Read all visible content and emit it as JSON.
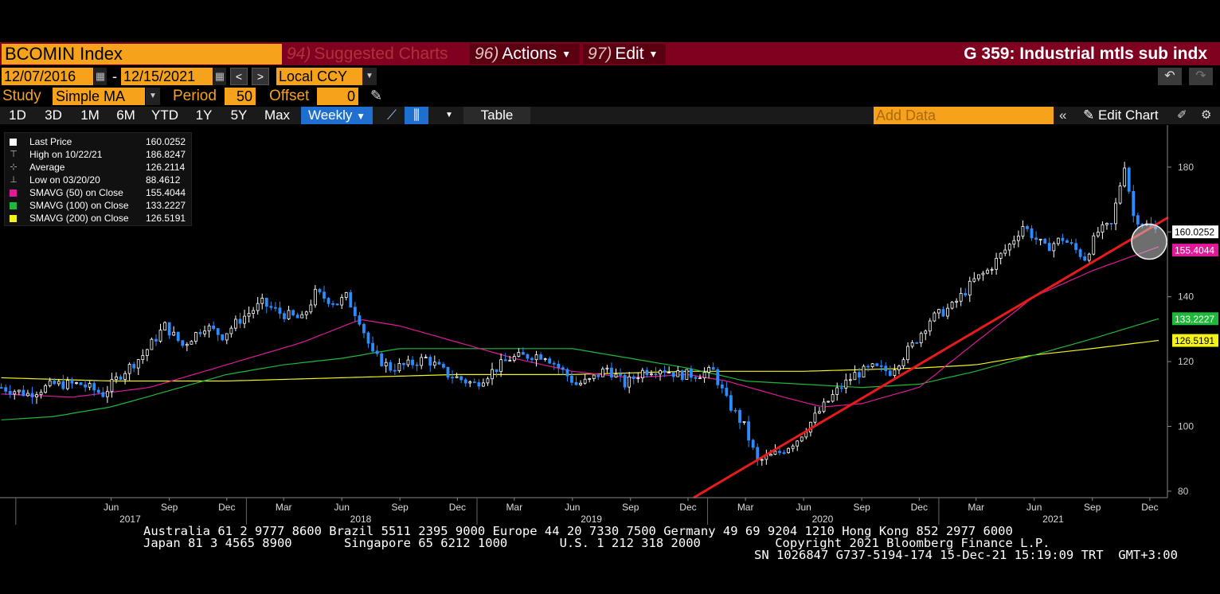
{
  "header": {
    "ticker": "BCOMIN Index",
    "suggested": {
      "num": "94)",
      "label": "Suggested Charts"
    },
    "actions": {
      "num": "96)",
      "label": "Actions"
    },
    "edit": {
      "num": "97)",
      "label": "Edit"
    },
    "chart_title": "G 359: Industrial mtls sub indx"
  },
  "controls": {
    "start_date": "12/07/2016",
    "end_date": "12/15/2021",
    "date_sep": "-",
    "prev": "<",
    "next": ">",
    "currency": "Local CCY",
    "study_label": "Study",
    "study_value": "Simple MA",
    "period_label": "Period",
    "period_value": "50",
    "offset_label": "Offset",
    "offset_value": "0"
  },
  "tabs": {
    "items": [
      "1D",
      "3D",
      "1M",
      "6M",
      "YTD",
      "1Y",
      "5Y",
      "Max"
    ],
    "active": "Weekly",
    "table": "Table",
    "add_data_placeholder": "Add Data",
    "edit_chart": "Edit Chart"
  },
  "legend": [
    {
      "name": "Last Price",
      "value": "160.0252",
      "color": "#ffffff"
    },
    {
      "name": "High on 10/22/21",
      "value": "186.8247",
      "icon": "high-marker-icon"
    },
    {
      "name": "Average",
      "value": "126.2114",
      "icon": "average-marker-icon"
    },
    {
      "name": "Low on 03/20/20",
      "value": "88.4612",
      "icon": "low-marker-icon"
    },
    {
      "name": "SMAVG (50)  on Close",
      "value": "155.4044",
      "color": "#e0189a"
    },
    {
      "name": "SMAVG (100)  on Close",
      "value": "133.2227",
      "color": "#1fb83a"
    },
    {
      "name": "SMAVG (200)  on Close",
      "value": "126.5191",
      "color": "#f3f31a"
    }
  ],
  "chart_data": {
    "type": "candlestick",
    "period": "weekly",
    "x_range": [
      "2016-12-07",
      "2021-12-15"
    ],
    "ylim": [
      78,
      193
    ],
    "y_ticks": [
      80,
      100,
      120,
      140,
      160,
      180
    ],
    "x_tick_months": [
      "Jun",
      "Sep",
      "Dec",
      "Mar",
      "Jun",
      "Sep",
      "Dec",
      "Mar",
      "Jun",
      "Sep",
      "Dec",
      "Mar",
      "Jun",
      "Sep",
      "Dec",
      "Mar",
      "Jun",
      "Sep",
      "Dec"
    ],
    "x_tick_dates": [
      "2017-06-01",
      "2017-09-01",
      "2017-12-01",
      "2018-03-01",
      "2018-06-01",
      "2018-09-01",
      "2018-12-01",
      "2019-03-01",
      "2019-06-01",
      "2019-09-01",
      "2019-12-01",
      "2020-03-01",
      "2020-06-01",
      "2020-09-01",
      "2020-12-01",
      "2021-03-01",
      "2021-06-01",
      "2021-09-01",
      "2021-12-01"
    ],
    "x_years": [
      {
        "label": "2017",
        "date": "2017-07-01"
      },
      {
        "label": "2018",
        "date": "2018-07-01"
      },
      {
        "label": "2019",
        "date": "2019-07-01"
      },
      {
        "label": "2020",
        "date": "2020-07-01"
      },
      {
        "label": "2021",
        "date": "2021-07-01"
      }
    ],
    "price_path": [
      [
        "2016-12-09",
        112
      ],
      [
        "2017-01-20",
        110
      ],
      [
        "2017-03-03",
        113
      ],
      [
        "2017-04-14",
        113
      ],
      [
        "2017-05-19",
        110
      ],
      [
        "2017-06-16",
        116
      ],
      [
        "2017-07-21",
        122
      ],
      [
        "2017-08-25",
        131
      ],
      [
        "2017-09-22",
        125
      ],
      [
        "2017-10-27",
        131
      ],
      [
        "2017-11-24",
        128
      ],
      [
        "2017-12-22",
        133
      ],
      [
        "2018-01-26",
        138
      ],
      [
        "2018-02-23",
        135
      ],
      [
        "2018-03-30",
        133
      ],
      [
        "2018-04-20",
        141
      ],
      [
        "2018-05-25",
        138
      ],
      [
        "2018-06-08",
        140
      ],
      [
        "2018-06-29",
        133
      ],
      [
        "2018-07-20",
        122
      ],
      [
        "2018-08-17",
        118
      ],
      [
        "2018-09-14",
        119
      ],
      [
        "2018-10-12",
        121
      ],
      [
        "2018-11-16",
        116
      ],
      [
        "2018-12-28",
        113
      ],
      [
        "2019-01-25",
        117
      ],
      [
        "2019-02-22",
        121
      ],
      [
        "2019-03-29",
        122
      ],
      [
        "2019-04-19",
        122
      ],
      [
        "2019-05-17",
        117
      ],
      [
        "2019-06-07",
        113
      ],
      [
        "2019-06-28",
        114
      ],
      [
        "2019-07-26",
        118
      ],
      [
        "2019-08-23",
        113
      ],
      [
        "2019-09-20",
        117
      ],
      [
        "2019-10-18",
        118
      ],
      [
        "2019-11-15",
        116
      ],
      [
        "2019-12-13",
        116
      ],
      [
        "2020-01-10",
        117
      ],
      [
        "2020-01-31",
        108
      ],
      [
        "2020-02-28",
        100
      ],
      [
        "2020-03-20",
        89
      ],
      [
        "2020-04-24",
        92
      ],
      [
        "2020-05-22",
        96
      ],
      [
        "2020-06-19",
        103
      ],
      [
        "2020-07-24",
        111
      ],
      [
        "2020-08-21",
        116
      ],
      [
        "2020-09-18",
        118
      ],
      [
        "2020-10-16",
        117
      ],
      [
        "2020-11-20",
        125
      ],
      [
        "2020-12-18",
        133
      ],
      [
        "2021-01-22",
        137
      ],
      [
        "2021-02-26",
        145
      ],
      [
        "2021-03-19",
        148
      ],
      [
        "2021-04-23",
        156
      ],
      [
        "2021-05-14",
        162
      ],
      [
        "2021-06-18",
        155
      ],
      [
        "2021-07-16",
        158
      ],
      [
        "2021-08-20",
        152
      ],
      [
        "2021-09-10",
        160
      ],
      [
        "2021-10-01",
        162
      ],
      [
        "2021-10-22",
        181
      ],
      [
        "2021-11-05",
        165
      ],
      [
        "2021-11-26",
        162
      ],
      [
        "2021-12-15",
        160.0252
      ]
    ],
    "sma50": [
      [
        "2016-12-09",
        110
      ],
      [
        "2017-04-01",
        109
      ],
      [
        "2017-08-01",
        112
      ],
      [
        "2017-12-01",
        119
      ],
      [
        "2018-04-01",
        126
      ],
      [
        "2018-07-01",
        133
      ],
      [
        "2018-09-01",
        131
      ],
      [
        "2018-12-01",
        126
      ],
      [
        "2019-03-01",
        121
      ],
      [
        "2019-06-01",
        117
      ],
      [
        "2019-09-01",
        115
      ],
      [
        "2019-12-01",
        116
      ],
      [
        "2020-02-01",
        114
      ],
      [
        "2020-05-01",
        109
      ],
      [
        "2020-07-01",
        106
      ],
      [
        "2020-09-01",
        107
      ],
      [
        "2020-12-01",
        112
      ],
      [
        "2021-03-01",
        126
      ],
      [
        "2021-06-01",
        140
      ],
      [
        "2021-09-01",
        148
      ],
      [
        "2021-12-15",
        155.4044
      ]
    ],
    "sma100": [
      [
        "2016-12-09",
        102
      ],
      [
        "2017-03-01",
        103
      ],
      [
        "2017-06-01",
        106
      ],
      [
        "2017-09-01",
        111
      ],
      [
        "2017-12-01",
        116
      ],
      [
        "2018-03-01",
        119
      ],
      [
        "2018-06-01",
        121
      ],
      [
        "2018-09-01",
        124
      ],
      [
        "2018-12-01",
        124
      ],
      [
        "2019-03-01",
        124
      ],
      [
        "2019-06-01",
        124
      ],
      [
        "2019-09-01",
        121
      ],
      [
        "2019-12-01",
        118
      ],
      [
        "2020-03-01",
        114
      ],
      [
        "2020-06-01",
        113
      ],
      [
        "2020-09-01",
        112
      ],
      [
        "2020-12-01",
        113
      ],
      [
        "2021-03-01",
        117
      ],
      [
        "2021-06-01",
        122
      ],
      [
        "2021-09-01",
        127
      ],
      [
        "2021-12-15",
        133.2227
      ]
    ],
    "sma200": [
      [
        "2016-12-09",
        115
      ],
      [
        "2017-06-01",
        114
      ],
      [
        "2017-12-01",
        114
      ],
      [
        "2018-06-01",
        115
      ],
      [
        "2018-12-01",
        116
      ],
      [
        "2019-06-01",
        116
      ],
      [
        "2019-12-01",
        117
      ],
      [
        "2020-06-01",
        117
      ],
      [
        "2020-12-01",
        118
      ],
      [
        "2021-03-01",
        119
      ],
      [
        "2021-06-01",
        122
      ],
      [
        "2021-09-01",
        124
      ],
      [
        "2021-12-15",
        126.5191
      ]
    ],
    "trendline": [
      [
        "2019-12-10",
        78
      ],
      [
        "2021-12-15",
        164.5
      ]
    ],
    "last_price_label": "160.0252",
    "sma50_label": "155.4044",
    "sma100_label": "133.2227",
    "sma200_label": "126.5191",
    "colors": {
      "up": "#ffffff",
      "down": "#2b8cff",
      "sma50": "#e0189a",
      "sma100": "#1fb83a",
      "sma200": "#f3f31a",
      "trend": "#e81a1a"
    }
  },
  "footer": {
    "line1": "Australia 61 2 9777 8600 Brazil 5511 2395 9000 Europe 44 20 7330 7500 Germany 49 69 9204 1210 Hong Kong 852 2977 6000",
    "line2": "Japan 81 3 4565 8900       Singapore 65 6212 1000       U.S. 1 212 318 2000          Copyright 2021 Bloomberg Finance L.P.",
    "line3": "SN 1026847 G737-5194-174 15-Dec-21 15:19:09 TRT  GMT+3:00"
  }
}
